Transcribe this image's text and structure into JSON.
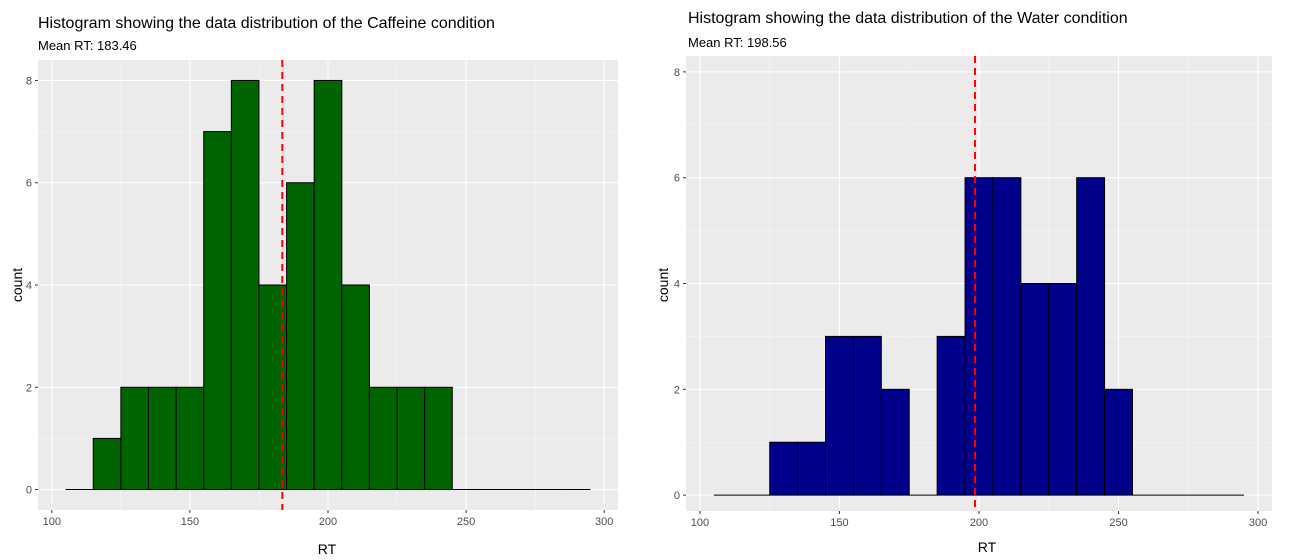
{
  "chart_data": [
    {
      "type": "bar",
      "title": "Histogram showing the data distribution of the Caffeine condition",
      "subtitle": "Mean RT: 183.46",
      "xlabel": "RT",
      "ylabel": "count",
      "xlim": [
        95,
        305
      ],
      "ylim": [
        -0.4,
        8.4
      ],
      "x_ticks": [
        100,
        150,
        200,
        250,
        300
      ],
      "y_ticks": [
        0,
        2,
        4,
        6,
        8
      ],
      "mean_line": 183.46,
      "bin_width": 10,
      "bins": [
        {
          "start": 105,
          "count": 0
        },
        {
          "start": 115,
          "count": 1
        },
        {
          "start": 125,
          "count": 2
        },
        {
          "start": 135,
          "count": 2
        },
        {
          "start": 145,
          "count": 2
        },
        {
          "start": 155,
          "count": 7
        },
        {
          "start": 165,
          "count": 8
        },
        {
          "start": 175,
          "count": 4
        },
        {
          "start": 185,
          "count": 6
        },
        {
          "start": 195,
          "count": 8
        },
        {
          "start": 205,
          "count": 4
        },
        {
          "start": 215,
          "count": 2
        },
        {
          "start": 225,
          "count": 2
        },
        {
          "start": 235,
          "count": 2
        },
        {
          "start": 245,
          "count": 0
        },
        {
          "start": 255,
          "count": 0
        },
        {
          "start": 265,
          "count": 0
        },
        {
          "start": 275,
          "count": 0
        },
        {
          "start": 285,
          "count": 0
        }
      ],
      "fill_color": "#006400",
      "mean_line_color": "#ff0000",
      "grid": true
    },
    {
      "type": "bar",
      "title": "Histogram showing the data distribution of the Water condition",
      "subtitle": "Mean RT: 198.56",
      "xlabel": "RT",
      "ylabel": "count",
      "xlim": [
        95,
        305
      ],
      "ylim": [
        -0.3,
        8.3
      ],
      "x_ticks": [
        100,
        150,
        200,
        250,
        300
      ],
      "y_ticks": [
        0,
        2,
        4,
        6,
        8
      ],
      "mean_line": 198.56,
      "bin_width": 10,
      "bins": [
        {
          "start": 105,
          "count": 0
        },
        {
          "start": 115,
          "count": 0
        },
        {
          "start": 125,
          "count": 1
        },
        {
          "start": 135,
          "count": 1
        },
        {
          "start": 145,
          "count": 3
        },
        {
          "start": 155,
          "count": 3
        },
        {
          "start": 165,
          "count": 2
        },
        {
          "start": 175,
          "count": 0
        },
        {
          "start": 185,
          "count": 3
        },
        {
          "start": 195,
          "count": 6
        },
        {
          "start": 205,
          "count": 6
        },
        {
          "start": 215,
          "count": 4
        },
        {
          "start": 225,
          "count": 4
        },
        {
          "start": 235,
          "count": 6
        },
        {
          "start": 245,
          "count": 2
        },
        {
          "start": 255,
          "count": 0
        },
        {
          "start": 265,
          "count": 0
        },
        {
          "start": 275,
          "count": 0
        },
        {
          "start": 285,
          "count": 0
        }
      ],
      "fill_color": "#00008b",
      "mean_line_color": "#ff0000",
      "grid": true
    }
  ]
}
